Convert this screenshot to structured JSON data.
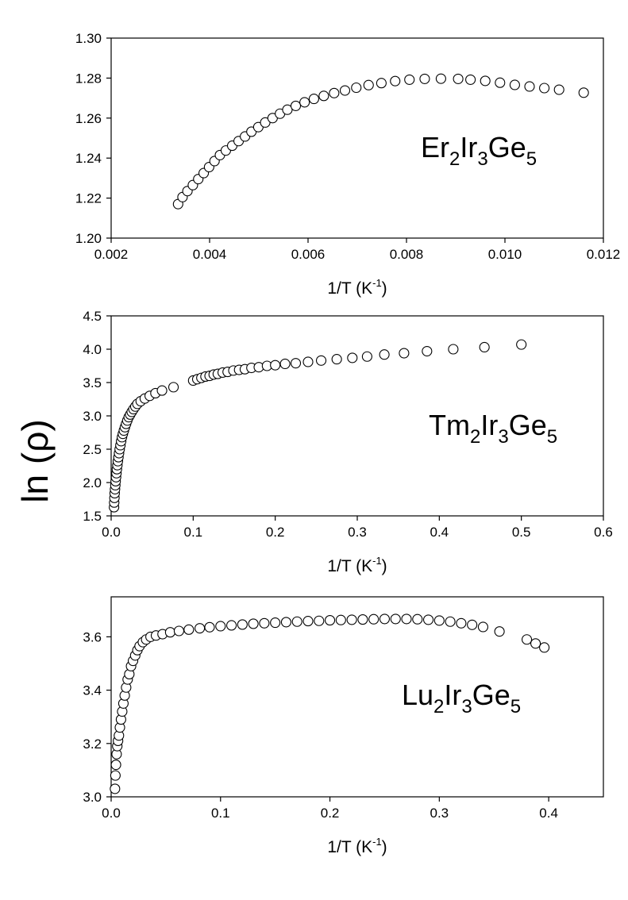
{
  "ylabel": "ln (ρ)",
  "chart_data": [
    {
      "type": "scatter",
      "label": {
        "base": [
          "Er",
          "Ir",
          "Ge"
        ],
        "subs": [
          "2",
          "3",
          "5"
        ]
      },
      "xlabel": "1/T (K",
      "xlabel_sup": "-1",
      "xlabel_end": ")",
      "xlim": [
        0.002,
        0.012
      ],
      "ylim": [
        1.2,
        1.3
      ],
      "xticks": [
        "0.002",
        "0.004",
        "0.006",
        "0.008",
        "0.010",
        "0.012"
      ],
      "yticks": [
        "1.20",
        "1.22",
        "1.24",
        "1.26",
        "1.28",
        "1.30"
      ],
      "x": [
        0.00336,
        0.00345,
        0.00355,
        0.00366,
        0.00377,
        0.00388,
        0.00399,
        0.0041,
        0.00421,
        0.00433,
        0.00446,
        0.00459,
        0.00472,
        0.00485,
        0.00499,
        0.00513,
        0.00528,
        0.00543,
        0.00558,
        0.00575,
        0.00593,
        0.00612,
        0.00632,
        0.00653,
        0.00675,
        0.00698,
        0.00723,
        0.00749,
        0.00777,
        0.00806,
        0.00837,
        0.0087,
        0.00905,
        0.0093,
        0.0096,
        0.0099,
        0.0102,
        0.0105,
        0.0108,
        0.0111,
        0.0116
      ],
      "y": [
        1.217,
        1.2205,
        1.2235,
        1.2265,
        1.2295,
        1.2325,
        1.2355,
        1.2385,
        1.2415,
        1.2438,
        1.2462,
        1.2485,
        1.2508,
        1.2532,
        1.2555,
        1.2578,
        1.26,
        1.2622,
        1.2642,
        1.2661,
        1.2679,
        1.2696,
        1.2711,
        1.2725,
        1.2738,
        1.2752,
        1.2765,
        1.2775,
        1.2785,
        1.2792,
        1.2796,
        1.2797,
        1.2796,
        1.2792,
        1.2786,
        1.2777,
        1.2766,
        1.2758,
        1.275,
        1.2742,
        1.2727
      ]
    },
    {
      "type": "scatter",
      "label": {
        "base": [
          "Tm",
          "Ir",
          "Ge"
        ],
        "subs": [
          "2",
          "3",
          "5"
        ]
      },
      "xlabel": "1/T (K",
      "xlabel_sup": "-1",
      "xlabel_end": ")",
      "xlim": [
        0,
        0.6
      ],
      "ylim": [
        1.5,
        4.5
      ],
      "xticks": [
        "0.0",
        "0.1",
        "0.2",
        "0.3",
        "0.4",
        "0.5",
        "0.6"
      ],
      "yticks": [
        "1.5",
        "2.0",
        "2.5",
        "3.0",
        "3.5",
        "4.0",
        "4.5"
      ],
      "x": [
        0.0035,
        0.0037,
        0.004,
        0.0043,
        0.0047,
        0.0051,
        0.0055,
        0.006,
        0.0065,
        0.007,
        0.0076,
        0.0082,
        0.0089,
        0.0096,
        0.0104,
        0.0113,
        0.0122,
        0.0132,
        0.0143,
        0.0155,
        0.0168,
        0.0182,
        0.0197,
        0.0214,
        0.0232,
        0.0251,
        0.0272,
        0.0295,
        0.032,
        0.036,
        0.041,
        0.047,
        0.054,
        0.062,
        0.076,
        0.1,
        0.105,
        0.11,
        0.115,
        0.12,
        0.125,
        0.13,
        0.136,
        0.142,
        0.149,
        0.156,
        0.163,
        0.171,
        0.18,
        0.19,
        0.2,
        0.212,
        0.225,
        0.24,
        0.256,
        0.275,
        0.294,
        0.312,
        0.333,
        0.357,
        0.385,
        0.417,
        0.455,
        0.5
      ],
      "y": [
        1.63,
        1.7,
        1.77,
        1.84,
        1.9,
        1.96,
        2.02,
        2.08,
        2.14,
        2.2,
        2.26,
        2.32,
        2.38,
        2.44,
        2.5,
        2.56,
        2.62,
        2.68,
        2.73,
        2.78,
        2.83,
        2.88,
        2.93,
        2.98,
        3.02,
        3.06,
        3.1,
        3.14,
        3.18,
        3.22,
        3.26,
        3.3,
        3.34,
        3.38,
        3.43,
        3.53,
        3.55,
        3.57,
        3.59,
        3.6,
        3.62,
        3.63,
        3.65,
        3.66,
        3.68,
        3.69,
        3.7,
        3.72,
        3.73,
        3.75,
        3.76,
        3.78,
        3.79,
        3.81,
        3.83,
        3.85,
        3.87,
        3.89,
        3.92,
        3.94,
        3.97,
        4.0,
        4.03,
        4.07
      ]
    },
    {
      "type": "scatter",
      "label": {
        "base": [
          "Lu",
          "Ir",
          "Ge"
        ],
        "subs": [
          "2",
          "3",
          "5"
        ]
      },
      "xlabel": "1/T (K",
      "xlabel_sup": "-1",
      "xlabel_end": ")",
      "xlim": [
        0,
        0.45
      ],
      "ylim": [
        3.0,
        3.75
      ],
      "xticks": [
        "0.0",
        "0.1",
        "0.2",
        "0.3",
        "0.4"
      ],
      "yticks": [
        "3.0",
        "3.2",
        "3.4",
        "3.6"
      ],
      "x": [
        0.0035,
        0.0039,
        0.0044,
        0.005,
        0.0056,
        0.0063,
        0.0071,
        0.008,
        0.009,
        0.0101,
        0.0112,
        0.0124,
        0.0137,
        0.0151,
        0.0166,
        0.0182,
        0.02,
        0.022,
        0.024,
        0.026,
        0.029,
        0.032,
        0.036,
        0.041,
        0.047,
        0.054,
        0.062,
        0.071,
        0.081,
        0.09,
        0.1,
        0.11,
        0.12,
        0.13,
        0.14,
        0.15,
        0.16,
        0.17,
        0.18,
        0.19,
        0.2,
        0.21,
        0.22,
        0.23,
        0.24,
        0.25,
        0.26,
        0.27,
        0.28,
        0.29,
        0.3,
        0.31,
        0.32,
        0.33,
        0.34,
        0.355,
        0.38,
        0.388,
        0.396
      ],
      "y": [
        3.03,
        3.08,
        3.12,
        3.16,
        3.19,
        3.21,
        3.23,
        3.26,
        3.29,
        3.32,
        3.35,
        3.38,
        3.41,
        3.44,
        3.46,
        3.49,
        3.51,
        3.53,
        3.55,
        3.565,
        3.58,
        3.59,
        3.6,
        3.605,
        3.61,
        3.617,
        3.622,
        3.627,
        3.632,
        3.636,
        3.64,
        3.643,
        3.646,
        3.649,
        3.651,
        3.653,
        3.655,
        3.657,
        3.659,
        3.66,
        3.662,
        3.663,
        3.664,
        3.665,
        3.666,
        3.667,
        3.667,
        3.667,
        3.666,
        3.664,
        3.661,
        3.657,
        3.651,
        3.645,
        3.637,
        3.62,
        3.59,
        3.575,
        3.56
      ]
    }
  ]
}
